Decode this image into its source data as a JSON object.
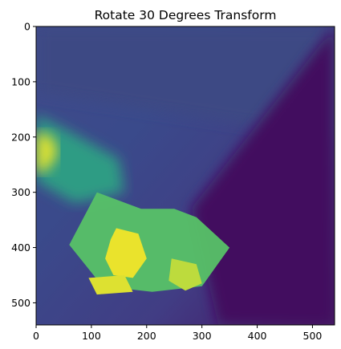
{
  "chart_data": {
    "type": "heatmap",
    "title": "Rotate 30 Degrees Transform",
    "xlabel": "",
    "ylabel": "",
    "xlim": [
      0,
      540
    ],
    "ylim": [
      540,
      0
    ],
    "x_ticks": [
      0,
      100,
      200,
      300,
      400,
      500
    ],
    "y_ticks": [
      0,
      100,
      200,
      300,
      400,
      500
    ],
    "colormap": "viridis",
    "grid": false,
    "legend": "none",
    "image_size": [
      540,
      540
    ],
    "regions": [
      {
        "name": "upper background",
        "level": 0.22,
        "polygon": [
          [
            0,
            0
          ],
          [
            540,
            0
          ],
          [
            540,
            200
          ],
          [
            0,
            120
          ]
        ]
      },
      {
        "name": "right dark wedge",
        "level": 0.05,
        "polygon": [
          [
            540,
            0
          ],
          [
            540,
            540
          ],
          [
            330,
            540
          ],
          [
            280,
            330
          ]
        ]
      },
      {
        "name": "left glow",
        "level": 0.55,
        "polygon": [
          [
            0,
            160
          ],
          [
            60,
            190
          ],
          [
            150,
            240
          ],
          [
            160,
            300
          ],
          [
            70,
            320
          ],
          [
            0,
            280
          ]
        ]
      },
      {
        "name": "bright left spot",
        "level": 0.95,
        "polygon": [
          [
            0,
            190
          ],
          [
            30,
            200
          ],
          [
            40,
            230
          ],
          [
            20,
            260
          ],
          [
            0,
            265
          ]
        ]
      },
      {
        "name": "central green patch",
        "level": 0.72,
        "polygon": [
          [
            110,
            300
          ],
          [
            190,
            330
          ],
          [
            250,
            330
          ],
          [
            290,
            345
          ],
          [
            350,
            400
          ],
          [
            300,
            470
          ],
          [
            210,
            480
          ],
          [
            120,
            470
          ],
          [
            60,
            395
          ]
        ]
      },
      {
        "name": "yellow cluster",
        "level": 0.97,
        "polygon": [
          [
            145,
            365
          ],
          [
            185,
            375
          ],
          [
            200,
            420
          ],
          [
            175,
            455
          ],
          [
            140,
            450
          ],
          [
            125,
            420
          ],
          [
            135,
            385
          ]
        ]
      },
      {
        "name": "yellow lower strip",
        "level": 0.95,
        "polygon": [
          [
            95,
            455
          ],
          [
            160,
            450
          ],
          [
            175,
            480
          ],
          [
            110,
            485
          ]
        ]
      },
      {
        "name": "right yellow patch",
        "level": 0.9,
        "polygon": [
          [
            245,
            420
          ],
          [
            290,
            430
          ],
          [
            300,
            465
          ],
          [
            270,
            478
          ],
          [
            240,
            460
          ]
        ]
      }
    ]
  }
}
